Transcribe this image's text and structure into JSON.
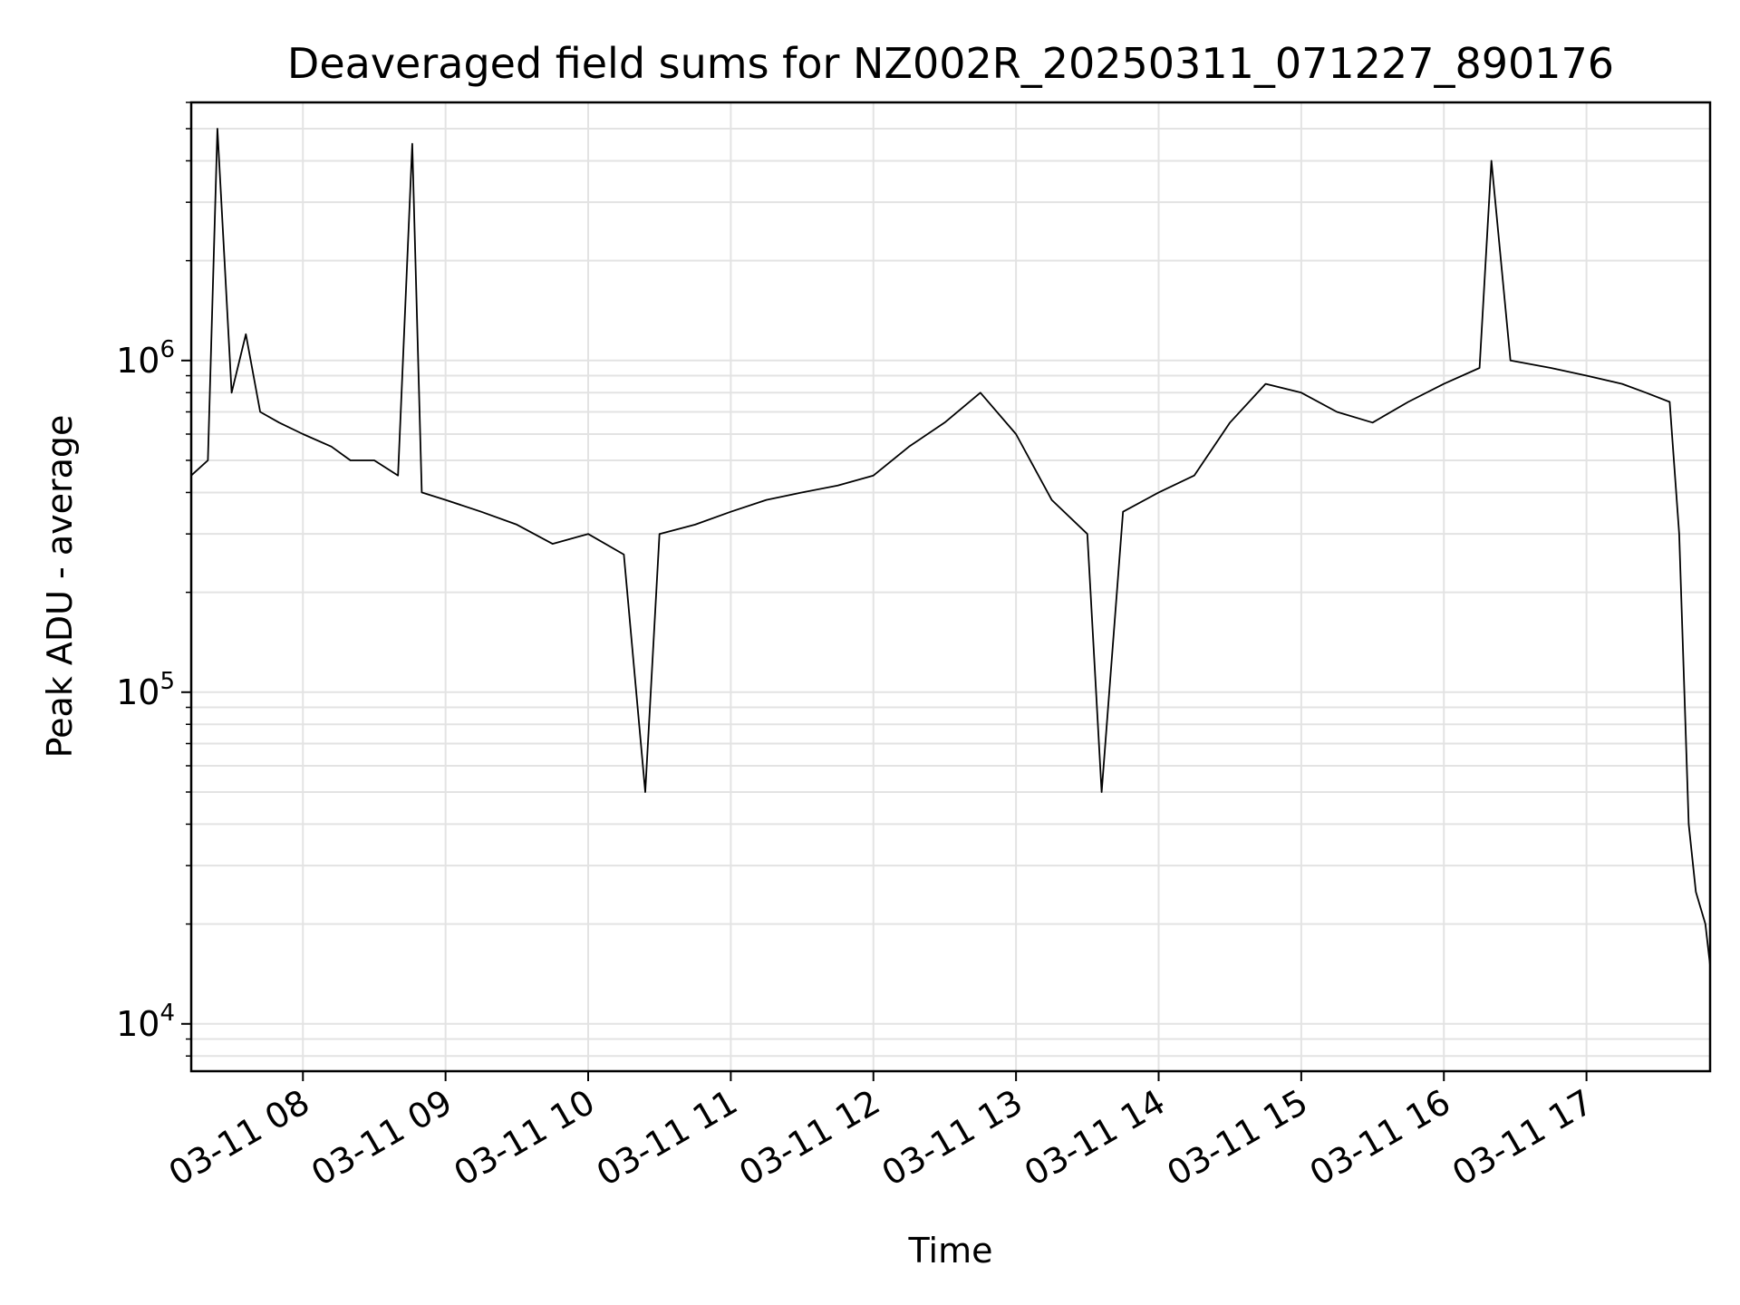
{
  "chart_data": {
    "type": "line",
    "title": "Deaveraged field sums for NZ002R_20250311_071227_890176",
    "xlabel": "Time",
    "ylabel": "Peak ADU - average",
    "yscale": "log",
    "grid": true,
    "xlim": [
      "2025-03-11 07:13",
      "2025-03-11 17:52"
    ],
    "ylim": [
      7200,
      6000000
    ],
    "x_ticks": [
      "03-11 08",
      "03-11 09",
      "03-11 10",
      "03-11 11",
      "03-11 12",
      "03-11 13",
      "03-11 14",
      "03-11 15",
      "03-11 16",
      "03-11 17"
    ],
    "y_ticks": [
      {
        "base": "10",
        "exp": "4",
        "value": 10000
      },
      {
        "base": "10",
        "exp": "5",
        "value": 100000
      },
      {
        "base": "10",
        "exp": "6",
        "value": 1000000
      }
    ],
    "series": [
      {
        "color": "#000000",
        "x": [
          "2025-03-11 07:13",
          "2025-03-11 07:20",
          "2025-03-11 07:24",
          "2025-03-11 07:30",
          "2025-03-11 07:36",
          "2025-03-11 07:42",
          "2025-03-11 07:50",
          "2025-03-11 08:00",
          "2025-03-11 08:12",
          "2025-03-11 08:20",
          "2025-03-11 08:30",
          "2025-03-11 08:40",
          "2025-03-11 08:46",
          "2025-03-11 08:50",
          "2025-03-11 09:00",
          "2025-03-11 09:15",
          "2025-03-11 09:30",
          "2025-03-11 09:45",
          "2025-03-11 10:00",
          "2025-03-11 10:15",
          "2025-03-11 10:24",
          "2025-03-11 10:30",
          "2025-03-11 10:45",
          "2025-03-11 11:00",
          "2025-03-11 11:15",
          "2025-03-11 11:30",
          "2025-03-11 11:45",
          "2025-03-11 12:00",
          "2025-03-11 12:15",
          "2025-03-11 12:30",
          "2025-03-11 12:45",
          "2025-03-11 13:00",
          "2025-03-11 13:15",
          "2025-03-11 13:30",
          "2025-03-11 13:36",
          "2025-03-11 13:45",
          "2025-03-11 14:00",
          "2025-03-11 14:15",
          "2025-03-11 14:30",
          "2025-03-11 14:45",
          "2025-03-11 15:00",
          "2025-03-11 15:15",
          "2025-03-11 15:30",
          "2025-03-11 15:45",
          "2025-03-11 16:00",
          "2025-03-11 16:15",
          "2025-03-11 16:20",
          "2025-03-11 16:28",
          "2025-03-11 16:45",
          "2025-03-11 17:00",
          "2025-03-11 17:15",
          "2025-03-11 17:25",
          "2025-03-11 17:35",
          "2025-03-11 17:39",
          "2025-03-11 17:43",
          "2025-03-11 17:46",
          "2025-03-11 17:50",
          "2025-03-11 17:52"
        ],
        "y": [
          450000,
          500000,
          5000000,
          800000,
          1200000,
          700000,
          650000,
          600000,
          550000,
          500000,
          500000,
          450000,
          4500000,
          400000,
          380000,
          350000,
          320000,
          280000,
          300000,
          260000,
          50000,
          300000,
          320000,
          350000,
          380000,
          400000,
          420000,
          450000,
          550000,
          650000,
          800000,
          600000,
          380000,
          300000,
          50000,
          350000,
          400000,
          450000,
          650000,
          850000,
          800000,
          700000,
          650000,
          750000,
          850000,
          950000,
          4000000,
          1000000,
          950000,
          900000,
          850000,
          800000,
          750000,
          300000,
          40000,
          25000,
          20000,
          15000
        ]
      }
    ]
  }
}
